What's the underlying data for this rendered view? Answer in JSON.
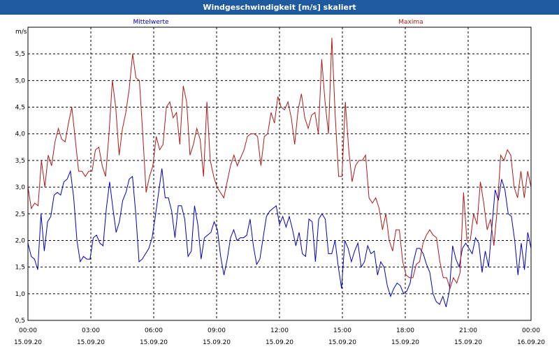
{
  "window": {
    "title": "Windgeschwindigkeit [m/s] skaliert"
  },
  "chart_data": {
    "type": "line",
    "title": "Windgeschwindigkeit [m/s] skaliert",
    "ylabel": "m/s",
    "ylim": [
      0.5,
      6.0
    ],
    "yticks": [
      "0,5",
      "1,0",
      "1,5",
      "2,0",
      "2,5",
      "3,0",
      "3,5",
      "4,0",
      "4,5",
      "5,0",
      "5,5"
    ],
    "xticks": [
      {
        "time": "00:00",
        "date": "15.09.20"
      },
      {
        "time": "03:00",
        "date": "15.09.20"
      },
      {
        "time": "06:00",
        "date": "15.09.20"
      },
      {
        "time": "09:00",
        "date": "15.09.20"
      },
      {
        "time": "12:00",
        "date": "15.09.20"
      },
      {
        "time": "15:00",
        "date": "15.09.20"
      },
      {
        "time": "18:00",
        "date": "15.09.20"
      },
      {
        "time": "21:00",
        "date": "15.09.20"
      },
      {
        "time": "00:00",
        "date": "16.09.20"
      }
    ],
    "grid": true,
    "series": [
      {
        "name": "Mittelwerte",
        "color": "#0000c0",
        "values": [
          1.95,
          1.7,
          1.65,
          1.45,
          2.5,
          1.8,
          2.35,
          2.45,
          2.85,
          2.9,
          2.85,
          3.1,
          3.15,
          3.3,
          2.8,
          2.0,
          1.6,
          1.7,
          1.65,
          1.65,
          2.05,
          2.1,
          1.95,
          1.9,
          2.6,
          3.1,
          2.6,
          2.15,
          2.35,
          2.75,
          2.9,
          3.15,
          3.2,
          2.5,
          1.6,
          1.65,
          1.75,
          1.85,
          2.05,
          2.45,
          2.9,
          3.35,
          2.8,
          2.8,
          2.55,
          2.05,
          2.65,
          2.65,
          2.4,
          1.7,
          1.8,
          2.65,
          2.3,
          1.65,
          2.05,
          2.1,
          2.15,
          2.35,
          2.2,
          1.7,
          1.35,
          1.65,
          2.05,
          2.2,
          2.0,
          2.05,
          2.05,
          2.1,
          2.4,
          1.9,
          1.55,
          1.65,
          2.05,
          2.45,
          2.55,
          2.6,
          2.65,
          2.3,
          2.45,
          2.25,
          2.45,
          2.2,
          1.9,
          2.15,
          1.75,
          1.7,
          2.4,
          2.35,
          1.6,
          2.4,
          2.5,
          2.4,
          1.75,
          1.75,
          2.0,
          1.5,
          1.1,
          2.0,
          1.85,
          1.6,
          1.8,
          1.95,
          1.5,
          1.6,
          1.9,
          1.75,
          1.8,
          1.35,
          1.6,
          1.5,
          1.15,
          0.95,
          1.1,
          1.2,
          1.15,
          1.0,
          1.05,
          1.2,
          1.6,
          1.85,
          1.85,
          1.75,
          1.55,
          1.4,
          1.0,
          0.85,
          0.8,
          0.95,
          0.75,
          1.05,
          1.9,
          1.65,
          1.5,
          1.85,
          1.95,
          1.85,
          1.75,
          2.05,
          1.95,
          1.4,
          1.8,
          1.5,
          2.25,
          2.95,
          2.75,
          3.15,
          2.95,
          2.5,
          2.45,
          2.0,
          1.35,
          1.95,
          1.45,
          2.15,
          1.85
        ]
      },
      {
        "name": "Maxima",
        "color": "#b01818",
        "values": [
          3.0,
          2.6,
          2.7,
          2.65,
          3.5,
          3.0,
          3.6,
          3.4,
          3.85,
          4.1,
          3.9,
          3.85,
          4.2,
          4.5,
          3.9,
          3.3,
          3.3,
          3.2,
          3.3,
          3.3,
          3.7,
          3.75,
          3.4,
          3.2,
          4.0,
          5.0,
          4.5,
          3.6,
          4.1,
          4.4,
          4.85,
          5.5,
          5.05,
          5.0,
          4.0,
          2.9,
          3.2,
          3.4,
          3.95,
          3.7,
          3.8,
          4.5,
          4.6,
          4.3,
          4.4,
          3.8,
          4.9,
          4.6,
          3.6,
          3.8,
          4.1,
          3.9,
          3.2,
          4.6,
          3.5,
          3.2,
          3.0,
          2.9,
          2.8,
          3.1,
          3.4,
          3.6,
          3.4,
          3.55,
          3.7,
          3.95,
          4.0,
          4.0,
          3.95,
          3.4,
          3.95,
          4.0,
          4.4,
          4.2,
          4.7,
          4.5,
          4.45,
          4.6,
          4.3,
          3.8,
          4.45,
          4.75,
          4.3,
          4.1,
          4.35,
          4.4,
          4.0,
          5.4,
          4.6,
          4.0,
          5.8,
          4.35,
          3.2,
          3.2,
          4.6,
          3.7,
          3.1,
          3.4,
          3.5,
          3.5,
          3.6,
          2.8,
          2.7,
          2.8,
          2.6,
          2.2,
          2.5,
          2.0,
          1.8,
          2.2,
          2.2,
          1.6,
          1.35,
          1.3,
          1.3,
          1.55,
          1.6,
          1.95,
          2.1,
          2.2,
          2.1,
          2.05,
          1.6,
          1.3,
          1.3,
          1.1,
          1.3,
          1.2,
          1.4,
          2.9,
          2.0,
          2.0,
          2.5,
          2.3,
          3.1,
          2.7,
          2.2,
          2.4,
          1.9,
          2.6,
          3.6,
          3.5,
          3.7,
          3.6,
          3.0,
          2.8,
          3.3,
          2.8,
          3.3,
          3.0
        ]
      }
    ]
  }
}
